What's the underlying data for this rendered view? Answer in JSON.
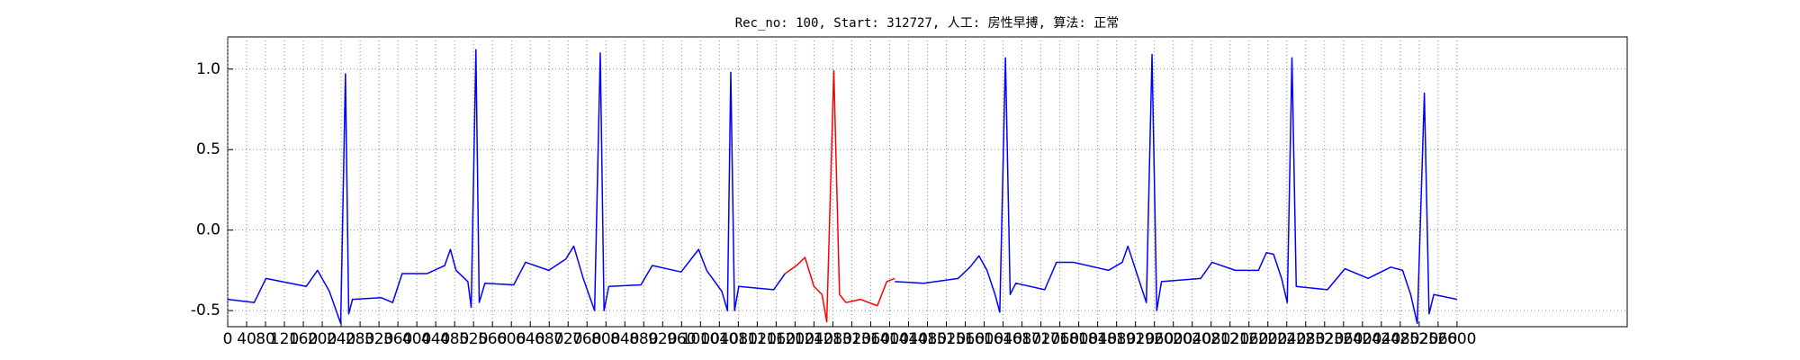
{
  "chart_data": {
    "type": "line",
    "title": "Rec_no: 100, Start: 312727, 人工: 房性早搏, 算法: 正常",
    "xlim": [
      0,
      2960
    ],
    "ylim": [
      -0.6,
      1.2
    ],
    "grid": true,
    "xticks": [
      0,
      40,
      80,
      120,
      160,
      200,
      240,
      280,
      320,
      360,
      400,
      440,
      480,
      520,
      560,
      600,
      640,
      680,
      720,
      760,
      800,
      840,
      880,
      920,
      960,
      1000,
      1040,
      1080,
      1120,
      1160,
      1200,
      1240,
      1280,
      1320,
      1360,
      1400,
      1440,
      1480,
      1520,
      1560,
      1600,
      1640,
      1680,
      1720,
      1760,
      1800,
      1840,
      1880,
      1920,
      1960,
      2000,
      2040,
      2080,
      2120,
      2160,
      2200,
      2240,
      2280,
      2320,
      2360,
      2400,
      2440,
      2480,
      2520,
      2560,
      2600
    ],
    "yticks": [
      -0.5,
      {
        "value": 0,
        "label": "0.0"
      },
      0.5,
      {
        "value": 1,
        "label": "1.0"
      }
    ],
    "series": [
      {
        "color": "#0000ff",
        "x": [
          0,
          56,
          81,
          166,
          190,
          215,
          239,
          249,
          256,
          264,
          325,
          349,
          369,
          422,
          459,
          471,
          483,
          508,
          515,
          525,
          532,
          544,
          605,
          630,
          679,
          715,
          732,
          752,
          776,
          788,
          796,
          806,
          874,
          898,
          959,
          996,
          1013,
          1045,
          1057,
          1064,
          1072,
          1081,
          1155,
          1179,
          1290,
          1411,
          1472,
          1545,
          1570,
          1589,
          1606,
          1623,
          1633,
          1645,
          1655,
          1667,
          1728,
          1753,
          1789,
          1863,
          1892,
          1904,
          1924,
          1943,
          1955,
          1965,
          1975,
          2058,
          2082,
          2131,
          2180,
          2197,
          2212,
          2229,
          2241,
          2251,
          2260,
          2326,
          2363,
          2412,
          2460,
          2485,
          2502,
          2516,
          2531,
          2541,
          2551,
          2600
        ],
        "values": [
          -0.43,
          -0.45,
          -0.3,
          -0.35,
          -0.25,
          -0.38,
          -0.58,
          0.97,
          -0.52,
          -0.43,
          -0.42,
          -0.45,
          -0.27,
          -0.27,
          -0.22,
          -0.12,
          -0.25,
          -0.32,
          -0.48,
          1.12,
          -0.45,
          -0.33,
          -0.34,
          -0.2,
          -0.25,
          -0.18,
          -0.1,
          -0.3,
          -0.5,
          1.1,
          -0.5,
          -0.35,
          -0.34,
          -0.22,
          -0.26,
          -0.12,
          -0.25,
          -0.38,
          -0.5,
          0.98,
          -0.5,
          -0.35,
          -0.37,
          -0.27,
          null,
          -0.32,
          -0.33,
          -0.3,
          -0.23,
          -0.16,
          -0.25,
          -0.4,
          -0.51,
          1.07,
          -0.4,
          -0.33,
          -0.37,
          -0.2,
          -0.2,
          -0.25,
          -0.2,
          -0.1,
          -0.28,
          -0.45,
          1.09,
          -0.5,
          -0.32,
          -0.3,
          -0.2,
          -0.25,
          -0.25,
          -0.14,
          -0.15,
          -0.3,
          -0.45,
          1.07,
          -0.35,
          -0.37,
          -0.24,
          -0.3,
          -0.23,
          -0.25,
          -0.4,
          -0.58,
          0.85,
          -0.52,
          -0.4,
          -0.43
        ]
      },
      {
        "color": "#ff0000",
        "x": [
          1179,
          1203,
          1221,
          1240,
          1257,
          1267,
          1282,
          1294,
          1308,
          1338,
          1374,
          1394,
          1411
        ],
        "values": [
          -0.27,
          -0.22,
          -0.17,
          -0.35,
          -0.4,
          -0.57,
          0.99,
          -0.4,
          -0.45,
          -0.43,
          -0.47,
          -0.32,
          -0.3
        ]
      }
    ]
  }
}
